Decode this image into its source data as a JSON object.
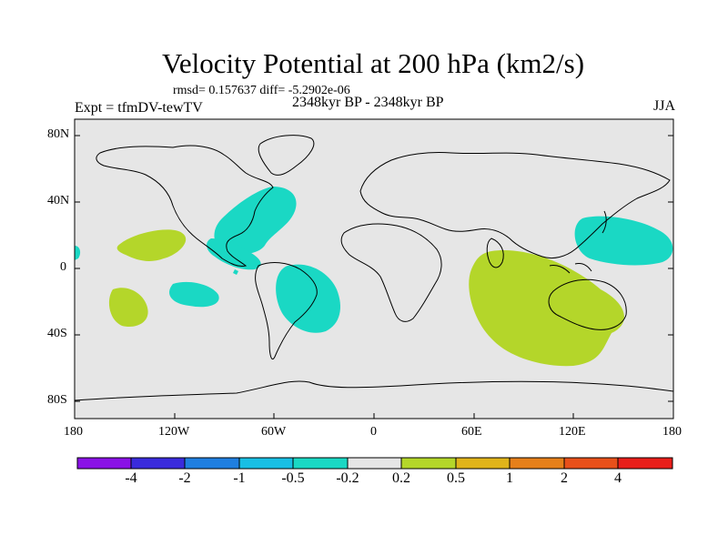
{
  "title": "Velocity Potential at 200 hPa (km2/s)",
  "stats": "rmsd= 0.157637 diff= -5.2902e-06",
  "experiment": "Expt = tfmDV-tewTV",
  "period": "2348kyr BP - 2348kyr BP",
  "season": "JJA",
  "lat_ticks": [
    "80N",
    "40N",
    "0",
    "40S",
    "80S"
  ],
  "lon_ticks": [
    "180",
    "120W",
    "60W",
    "0",
    "60E",
    "120E",
    "180"
  ],
  "colorbar": {
    "labels": [
      "-4",
      "-2",
      "-1",
      "-0.5",
      "-0.2",
      "0.2",
      "0.5",
      "1",
      "2",
      "4"
    ],
    "colors": [
      "#8a12e6",
      "#3a2bdc",
      "#1f7fe0",
      "#18bfe4",
      "#1ad8c4",
      "#e6e6e6",
      "#b4d62a",
      "#e0b41a",
      "#e6801a",
      "#e8501a",
      "#e81e1a"
    ]
  },
  "colors": {
    "negative_fill": "#1ad8c4",
    "positive_fill": "#b4d62a",
    "map_background": "#e6e6e6"
  }
}
